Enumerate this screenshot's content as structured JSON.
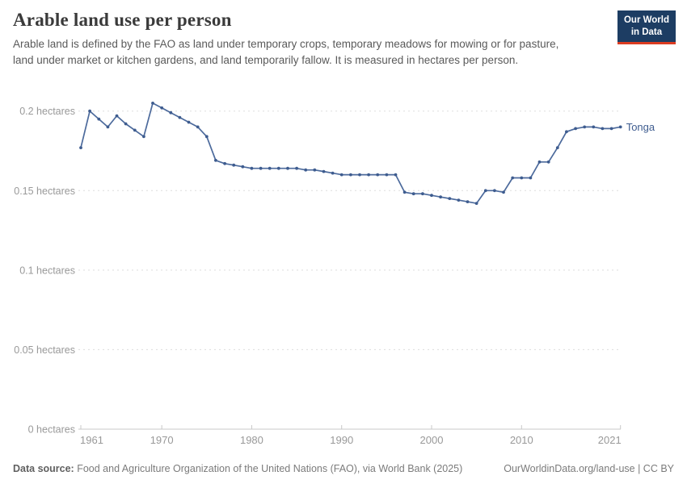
{
  "header": {
    "title": "Arable land use per person",
    "subtitle": "Arable land is defined by the FAO as land under temporary crops, temporary meadows for mowing or for pasture, land under market or kitchen gardens, and land temporarily fallow. It is measured in hectares per person.",
    "logo_line1": "Our World",
    "logo_line2": "in Data"
  },
  "footer": {
    "datasource_label": "Data source:",
    "datasource_text": " Food and Agriculture Organization of the United Nations (FAO), via World Bank (2025)",
    "link_text": "OurWorldinData.org/land-use | CC BY"
  },
  "colors": {
    "line": "#4C6A9C",
    "marker": "#3E5C8F",
    "entity_label": "#3E5C8F",
    "grid": "#dddddd",
    "axis": "#c8c8c8",
    "tick_text": "#999999",
    "logo_bg": "#1d3d63",
    "logo_red": "#dc3c22"
  },
  "chart_data": {
    "type": "line",
    "title": "Arable land use per person",
    "unit": "hectares",
    "legend_position": "end-of-line",
    "grid": "dashed-horizontal",
    "xlim": [
      1961,
      2021
    ],
    "ylim": [
      0,
      0.21
    ],
    "xticks": [
      1961,
      1970,
      1980,
      1990,
      2000,
      2010,
      2021
    ],
    "yticks": [
      {
        "value": 0,
        "label": "0 hectares"
      },
      {
        "value": 0.05,
        "label": "0.05 hectares"
      },
      {
        "value": 0.1,
        "label": "0.1 hectares"
      },
      {
        "value": 0.15,
        "label": "0.15 hectares"
      },
      {
        "value": 0.2,
        "label": "0.2 hectares"
      }
    ],
    "x": [
      1961,
      1962,
      1963,
      1964,
      1965,
      1966,
      1967,
      1968,
      1969,
      1970,
      1971,
      1972,
      1973,
      1974,
      1975,
      1976,
      1977,
      1978,
      1979,
      1980,
      1981,
      1982,
      1983,
      1984,
      1985,
      1986,
      1987,
      1988,
      1989,
      1990,
      1991,
      1992,
      1993,
      1994,
      1995,
      1996,
      1997,
      1998,
      1999,
      2000,
      2001,
      2002,
      2003,
      2004,
      2005,
      2006,
      2007,
      2008,
      2009,
      2010,
      2011,
      2012,
      2013,
      2014,
      2015,
      2016,
      2017,
      2018,
      2019,
      2020,
      2021
    ],
    "series": [
      {
        "name": "Tonga",
        "values": [
          0.177,
          0.2,
          0.195,
          0.19,
          0.197,
          0.192,
          0.188,
          0.184,
          0.205,
          0.202,
          0.199,
          0.196,
          0.193,
          0.19,
          0.184,
          0.169,
          0.167,
          0.166,
          0.165,
          0.164,
          0.164,
          0.164,
          0.164,
          0.164,
          0.164,
          0.163,
          0.163,
          0.162,
          0.161,
          0.16,
          0.16,
          0.16,
          0.16,
          0.16,
          0.16,
          0.16,
          0.149,
          0.148,
          0.148,
          0.147,
          0.146,
          0.145,
          0.144,
          0.143,
          0.142,
          0.15,
          0.15,
          0.149,
          0.158,
          0.158,
          0.158,
          0.168,
          0.168,
          0.177,
          0.187,
          0.189,
          0.19,
          0.19,
          0.189,
          0.189,
          0.19
        ]
      }
    ]
  }
}
